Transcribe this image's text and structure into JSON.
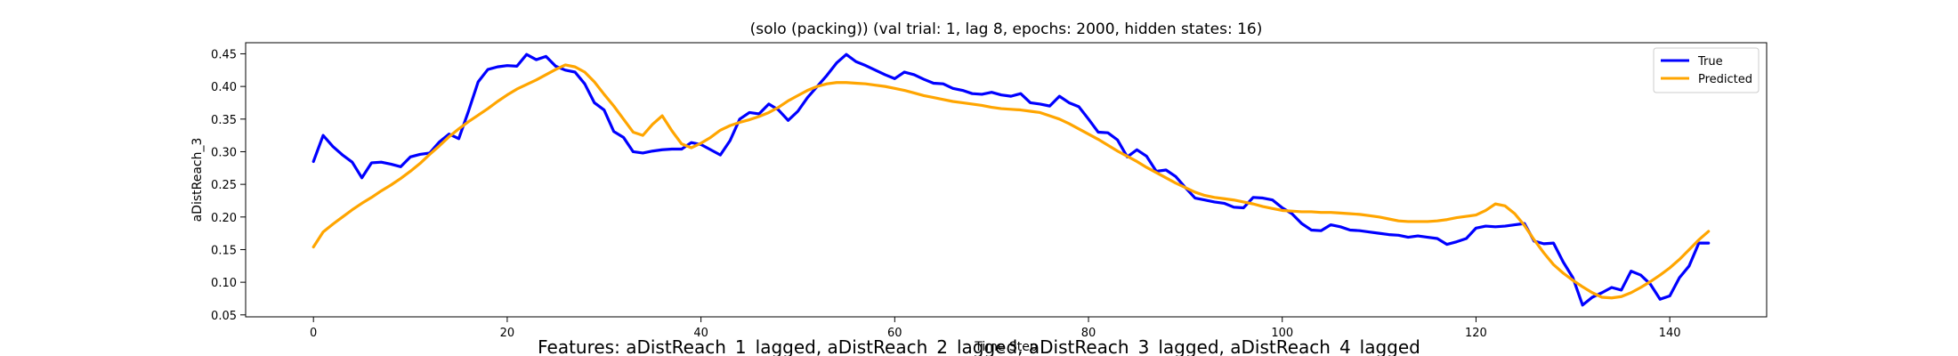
{
  "chart_data": {
    "type": "line",
    "title": "(solo (packing)) (val trial: 1, lag 8, epochs: 2000, hidden states: 16)",
    "xlabel": "Time Step",
    "ylabel": "aDistReach_3",
    "xlim": [
      -7,
      150
    ],
    "ylim": [
      0.047,
      0.467
    ],
    "xticks": [
      0,
      20,
      40,
      60,
      80,
      100,
      120,
      140
    ],
    "yticks": [
      0.05,
      0.1,
      0.15,
      0.2,
      0.25,
      0.3,
      0.35,
      0.4,
      0.45
    ],
    "legend_position": "top-right",
    "series": [
      {
        "name": "True",
        "color": "#0000ff",
        "values": [
          0.285,
          0.325,
          0.308,
          0.295,
          0.284,
          0.26,
          0.283,
          0.284,
          0.281,
          0.277,
          0.292,
          0.296,
          0.298,
          0.315,
          0.327,
          0.32,
          0.362,
          0.407,
          0.426,
          0.43,
          0.432,
          0.431,
          0.449,
          0.441,
          0.446,
          0.431,
          0.425,
          0.422,
          0.404,
          0.375,
          0.364,
          0.331,
          0.322,
          0.3,
          0.298,
          0.301,
          0.303,
          0.304,
          0.304,
          0.314,
          0.311,
          0.303,
          0.295,
          0.317,
          0.35,
          0.36,
          0.358,
          0.373,
          0.364,
          0.348,
          0.362,
          0.383,
          0.4,
          0.417,
          0.436,
          0.449,
          0.438,
          0.432,
          0.425,
          0.418,
          0.412,
          0.422,
          0.418,
          0.411,
          0.405,
          0.404,
          0.397,
          0.394,
          0.389,
          0.388,
          0.391,
          0.387,
          0.385,
          0.389,
          0.375,
          0.373,
          0.37,
          0.385,
          0.375,
          0.369,
          0.35,
          0.33,
          0.329,
          0.318,
          0.292,
          0.303,
          0.293,
          0.27,
          0.272,
          0.262,
          0.245,
          0.229,
          0.226,
          0.223,
          0.221,
          0.215,
          0.214,
          0.23,
          0.229,
          0.226,
          0.214,
          0.205,
          0.19,
          0.18,
          0.179,
          0.188,
          0.185,
          0.18,
          0.179,
          0.177,
          0.175,
          0.173,
          0.172,
          0.169,
          0.171,
          0.169,
          0.167,
          0.158,
          0.162,
          0.167,
          0.183,
          0.186,
          0.185,
          0.186,
          0.188,
          0.19,
          0.163,
          0.159,
          0.16,
          0.131,
          0.107,
          0.065,
          0.077,
          0.084,
          0.092,
          0.088,
          0.117,
          0.111,
          0.097,
          0.074,
          0.079,
          0.107,
          0.125,
          0.16,
          0.16
        ]
      },
      {
        "name": "Predicted",
        "color": "#ffa500",
        "values": [
          0.154,
          0.177,
          0.189,
          0.2,
          0.211,
          0.221,
          0.23,
          0.24,
          0.249,
          0.259,
          0.27,
          0.282,
          0.296,
          0.309,
          0.323,
          0.335,
          0.346,
          0.356,
          0.366,
          0.377,
          0.387,
          0.396,
          0.403,
          0.41,
          0.418,
          0.426,
          0.433,
          0.43,
          0.422,
          0.407,
          0.388,
          0.37,
          0.35,
          0.33,
          0.325,
          0.342,
          0.355,
          0.332,
          0.312,
          0.306,
          0.313,
          0.322,
          0.333,
          0.34,
          0.345,
          0.349,
          0.354,
          0.36,
          0.368,
          0.378,
          0.386,
          0.394,
          0.4,
          0.404,
          0.406,
          0.406,
          0.405,
          0.404,
          0.402,
          0.4,
          0.397,
          0.394,
          0.39,
          0.386,
          0.383,
          0.38,
          0.377,
          0.375,
          0.373,
          0.371,
          0.368,
          0.366,
          0.365,
          0.364,
          0.362,
          0.36,
          0.355,
          0.35,
          0.343,
          0.335,
          0.327,
          0.319,
          0.31,
          0.301,
          0.293,
          0.285,
          0.276,
          0.268,
          0.26,
          0.252,
          0.245,
          0.238,
          0.233,
          0.23,
          0.228,
          0.226,
          0.223,
          0.22,
          0.216,
          0.213,
          0.21,
          0.209,
          0.208,
          0.208,
          0.207,
          0.207,
          0.206,
          0.205,
          0.204,
          0.202,
          0.2,
          0.197,
          0.194,
          0.193,
          0.193,
          0.193,
          0.194,
          0.196,
          0.199,
          0.201,
          0.203,
          0.21,
          0.22,
          0.217,
          0.205,
          0.187,
          0.165,
          0.145,
          0.127,
          0.114,
          0.103,
          0.093,
          0.084,
          0.077,
          0.076,
          0.078,
          0.084,
          0.092,
          0.101,
          0.111,
          0.122,
          0.135,
          0.15,
          0.165,
          0.178
        ]
      }
    ],
    "caption": "Features: aDistReach_1_lagged, aDistReach_2_lagged, aDistReach_3_lagged, aDistReach_4_lagged"
  }
}
